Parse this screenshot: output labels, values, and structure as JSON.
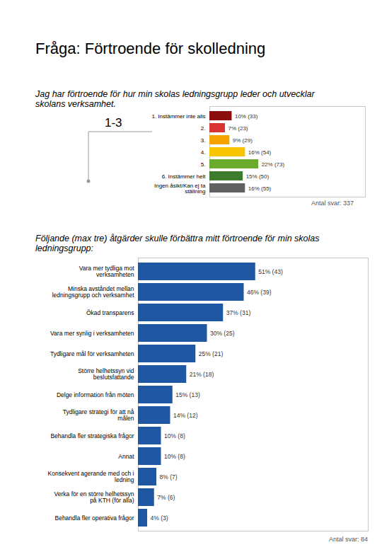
{
  "title": "Fråga: Förtroende för skolledning",
  "chart_data": [
    {
      "type": "bar",
      "orientation": "horizontal",
      "subtitle": "Jag har förtroende för hur min skolas ledningsgrupp leder och utvecklar skolans verksamhet.",
      "annotation": "1-3",
      "categories": [
        "1. Instämmer inte alls",
        "2.",
        "3.",
        "4.",
        "5.",
        "6. Instämmer helt",
        "Ingen åsikt/Kan ej ta ställning"
      ],
      "values": [
        10,
        7,
        9,
        16,
        22,
        15,
        16
      ],
      "value_labels": [
        "10% (33)",
        "7% (23)",
        "9% (29)",
        "16% (54)",
        "22% (73)",
        "15% (50)",
        "16% (55)"
      ],
      "colors": [
        "#8b0f0f",
        "#d93434",
        "#f5a300",
        "#f6c400",
        "#6aab2e",
        "#3e7b2c",
        "#616161"
      ],
      "xlim": [
        0,
        70
      ],
      "xticks": [],
      "tick_labels": "y",
      "data_labels": true,
      "caption": "Antal svar: 337"
    },
    {
      "type": "bar",
      "orientation": "horizontal",
      "subtitle": "Följande (max tre) åtgärder skulle förbättra mitt förtroende för min skolas ledningsgrupp:",
      "categories": [
        "Vara mer tydliga mot verksamheten",
        "Minska avståndet mellan ledningsgrupp och verksamhet",
        "Ökad transparens",
        "Vara mer synlig i verksamheten",
        "Tydligare mål för verksamheten",
        "Större helhetssyn vid beslutsfattande",
        "Delge information från möten",
        "Tydligare strategi för att nå målen",
        "Behandla fler strategiska frågor",
        "Annat",
        "Konsekvent agerande med och i ledning",
        "Verka för en större helhetssyn på KTH (för alla)",
        "Behandla fler operativa frågor"
      ],
      "values": [
        51,
        46,
        37,
        30,
        25,
        21,
        15,
        14,
        10,
        10,
        8,
        7,
        4
      ],
      "value_labels": [
        "51% (43)",
        "46% (39)",
        "37% (31)",
        "30% (25)",
        "25% (21)",
        "21% (18)",
        "15% (13)",
        "14% (12)",
        "10% (8)",
        "10% (8)",
        "8% (7)",
        "7% (6)",
        "4% (3)"
      ],
      "color": "#1f57a3",
      "xlim": [
        0,
        100
      ],
      "xticks": [],
      "tick_labels": "y",
      "data_labels": true,
      "caption": "Antal svar: 84"
    }
  ]
}
